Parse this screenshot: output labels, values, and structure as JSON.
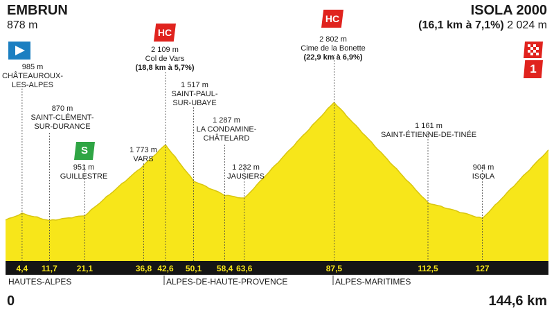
{
  "start": {
    "name": "EMBRUN",
    "altitude": "878 m"
  },
  "finish": {
    "name": "ISOLA 2000",
    "climb": "(16,1 km à 7,1%)",
    "altitude": "2 024 m"
  },
  "distance": {
    "start": "0",
    "end": "144,6 km"
  },
  "departments": [
    "HAUTES-ALPES",
    "ALPES-DE-HAUTE-PROVENCE",
    "ALPES-MARITIMES"
  ],
  "badges": {
    "hc": "HC",
    "sprint": "S",
    "finish_cat": "1"
  },
  "colors": {
    "profile": "#f7e61a",
    "profile_edge": "#d9c60f",
    "band": "#151515",
    "band_text": "#f7e61a",
    "hc": "#e0231e",
    "start_flag": "#1b7fc1",
    "sprint": "#2fa544"
  },
  "points": [
    {
      "alt": "985 m",
      "name": "CHÂTEAUROUX-\nLES-ALPES",
      "km": "4,4"
    },
    {
      "alt": "870 m",
      "name": "SAINT-CLÉMENT-\nSUR-DURANCE",
      "km": "11,7"
    },
    {
      "alt": "951 m",
      "name": "GUILLESTRE",
      "km": "21,1"
    },
    {
      "alt": "1 773 m",
      "name": "VARS",
      "km": "36,8"
    },
    {
      "alt": "2 109 m",
      "name": "Col de Vars",
      "detail": "(18,8 km à 5,7%)",
      "km": "42,6"
    },
    {
      "alt": "1 517 m",
      "name": "SAINT-PAUL-\nSUR-UBAYE",
      "km": "50,1"
    },
    {
      "alt": "1 287 m",
      "name": "LA CONDAMINE-\nCHÂTELARD",
      "km": "58,4"
    },
    {
      "alt": "1 232 m",
      "name": "JAUSIERS",
      "km": "63,6"
    },
    {
      "alt": "2 802 m",
      "name": "Cime de la Bonette",
      "detail": "(22,9 km à 6,9%)",
      "km": "87,5"
    },
    {
      "alt": "1 161 m",
      "name": "SAINT-ÉTIENNE-DE-TINÉE",
      "km": "112,5"
    },
    {
      "alt": "904 m",
      "name": "ISOLA",
      "km": "127"
    }
  ],
  "chart_data": {
    "type": "area",
    "x_unit": "km",
    "y_unit": "m",
    "x": [
      0,
      4.4,
      11.7,
      21.1,
      36.8,
      42.6,
      50.1,
      58.4,
      63.6,
      87.5,
      112.5,
      127,
      144.6
    ],
    "y": [
      878,
      985,
      870,
      951,
      1773,
      2109,
      1517,
      1287,
      1232,
      2802,
      1161,
      904,
      2024
    ],
    "xlim": [
      0,
      144.6
    ]
  }
}
